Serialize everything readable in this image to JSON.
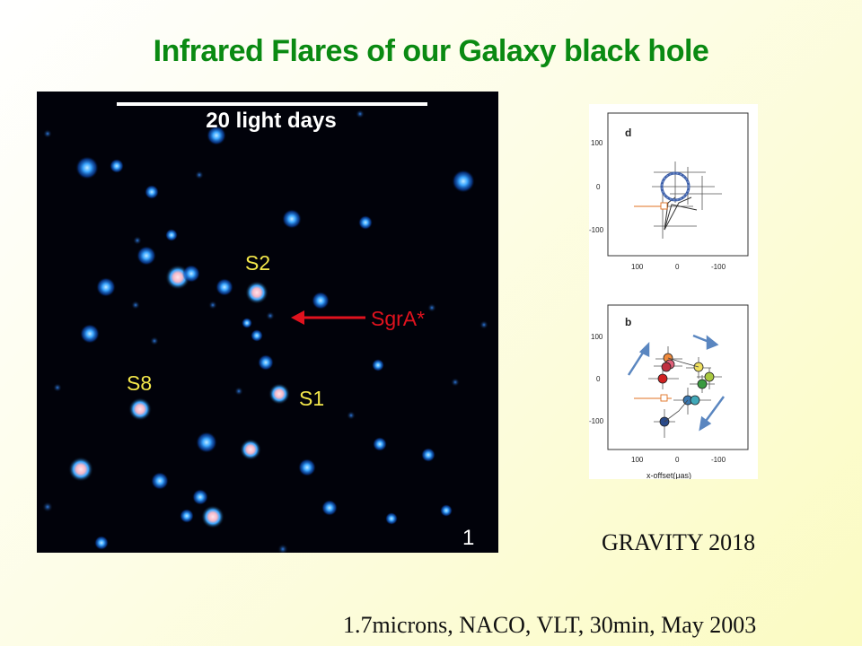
{
  "slide": {
    "title": "Infrared Flares of our Galaxy black hole",
    "footer": "1.7microns, NACO, VLT, 30min, May 2003",
    "gravity_credit": "GRAVITY 2018"
  },
  "starfield_image": {
    "scale_label": "20 light days",
    "labels": {
      "s2": "S2",
      "s8": "S8",
      "s1": "S1",
      "sgr": "SgrA*"
    },
    "panel_number": "1"
  },
  "gravity_figure": {
    "panel_d": {
      "letter": "d",
      "yticks": [
        "100",
        "0",
        "-100"
      ],
      "xticks": [
        "100",
        "0",
        "-100"
      ]
    },
    "panel_b": {
      "letter": "b",
      "yticks": [
        "100",
        "0",
        "-100"
      ],
      "xticks": [
        "100",
        "0",
        "-100"
      ],
      "xlabel": "x-offset(μas)"
    }
  },
  "colors": {
    "title_green": "#0a8a12",
    "label_yellow": "#f2e64a",
    "arrow_red": "#e0121e",
    "star_blue": "#2f9bff",
    "circle_blue": "#3d5fa8"
  }
}
